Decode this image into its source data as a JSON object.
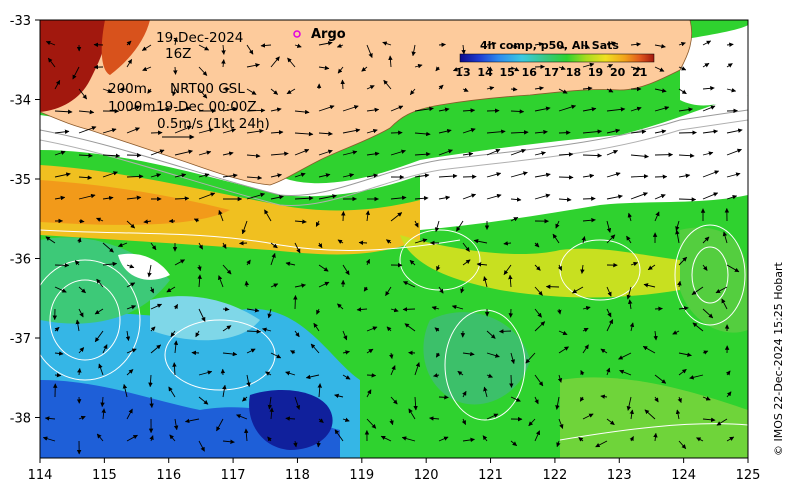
{
  "map": {
    "date": "19-Dec-2024",
    "hour": "16Z",
    "depth_label": "200m",
    "depth_label_2": "1000m",
    "product_label": "NRT00 GSL",
    "product_time": "19-Dec 00:00Z",
    "scale_label": "0.5m/s (1kt 24h)",
    "legend_argo": "Argo",
    "colorbar_title": "4h comp, p50, All Sats",
    "colorbar_labels": [
      "13",
      "14",
      "15",
      "16",
      "17",
      "18",
      "19",
      "20",
      "21"
    ],
    "credit": "© IMOS 22-Dec-2024 15:25 Hobart",
    "lon_ticks": [
      "114",
      "115",
      "116",
      "117",
      "118",
      "119",
      "120",
      "121",
      "122",
      "123",
      "124",
      "125"
    ],
    "lat_ticks": [
      "-33",
      "-34",
      "-35",
      "-36",
      "-37",
      "-38"
    ],
    "colors": {
      "land": "#FDCB9C",
      "coast_line": "#8B5A2B",
      "argo_marker": "#E000E0",
      "colorbar": [
        "#0B0B8C",
        "#1E3CD2",
        "#2E8BEF",
        "#3CC9E0",
        "#36C97A",
        "#2FD22F",
        "#A8DC1E",
        "#F0E020",
        "#F2A21A",
        "#E0561C",
        "#A2180E"
      ]
    }
  }
}
